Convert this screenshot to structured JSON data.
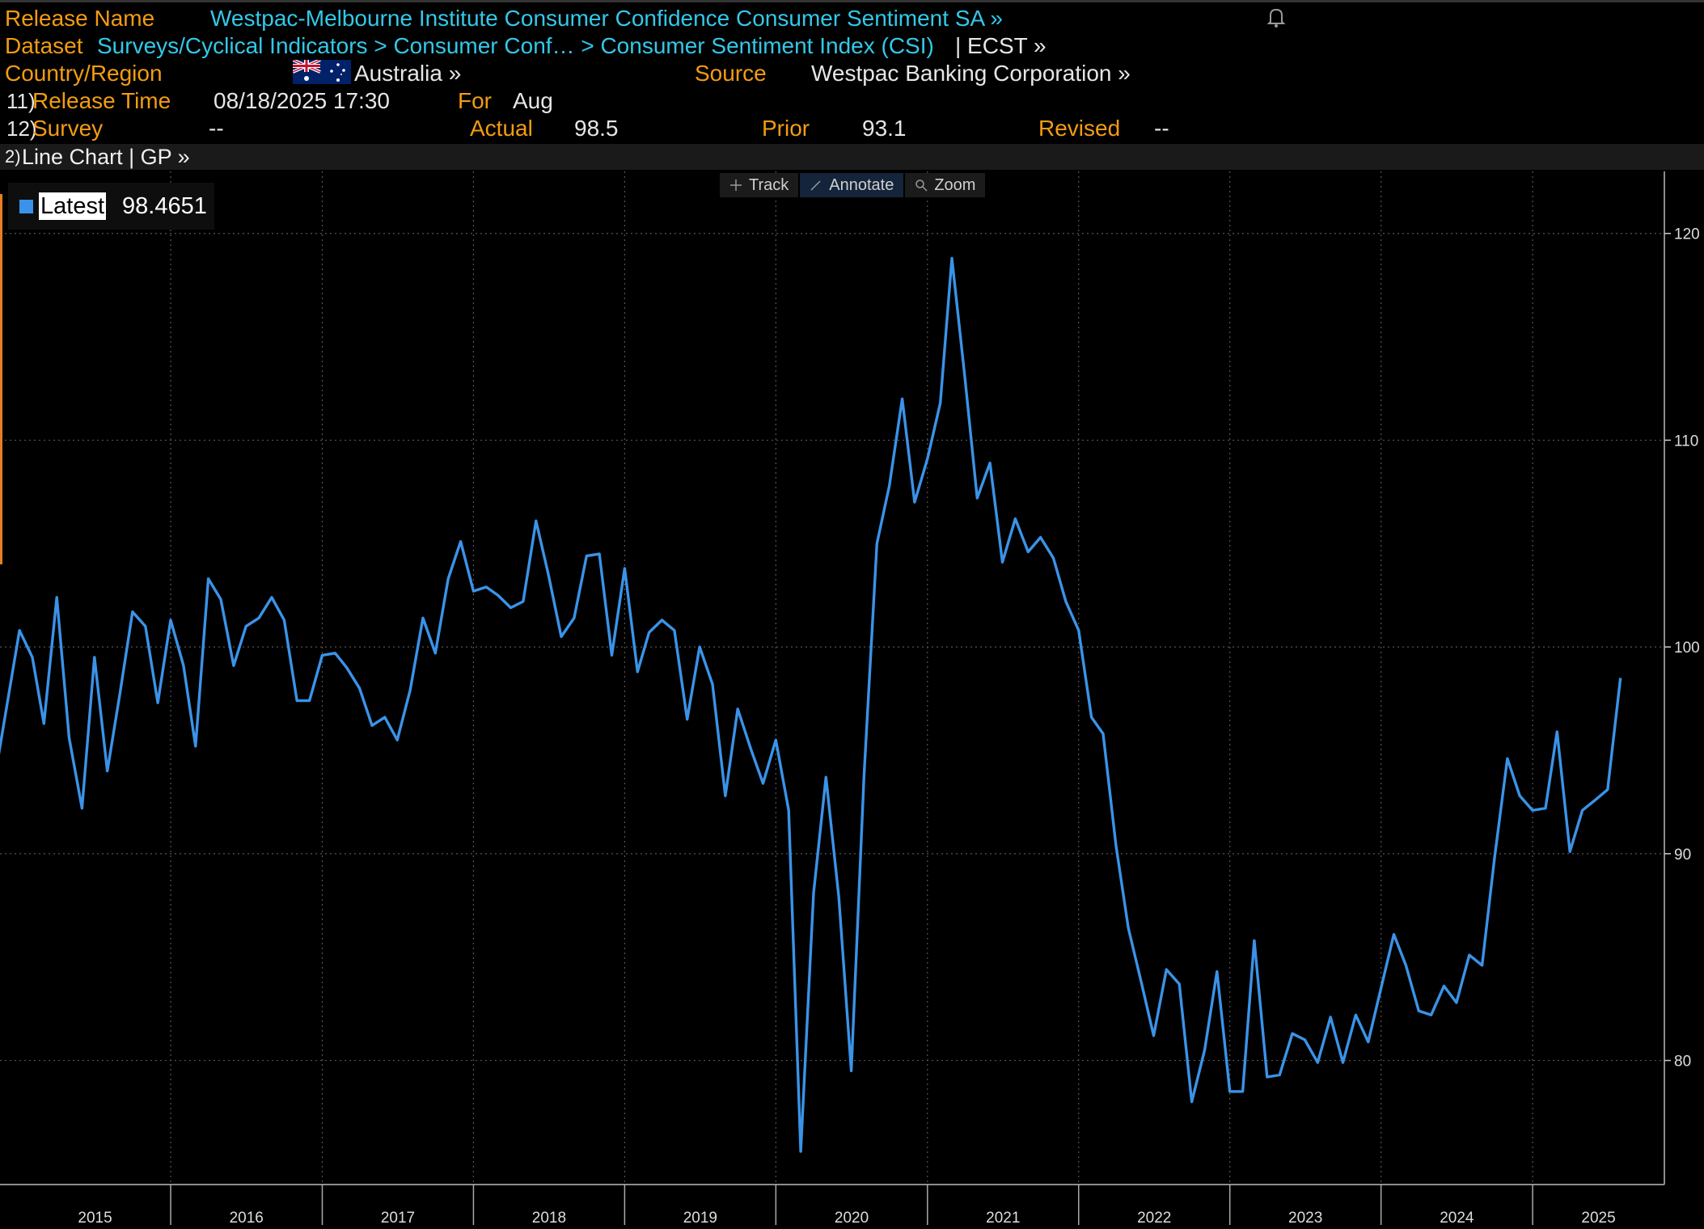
{
  "header": {
    "release_name_label": "Release Name",
    "release_name": "Westpac-Melbourne Institute Consumer Confidence Consumer Sentiment SA »",
    "dataset_label": "Dataset",
    "dataset_path": "Surveys/Cyclical Indicators > Consumer Conf… > Consumer Sentiment Index (CSI)",
    "dataset_suffix": "| ECST »",
    "country_label": "Country/Region",
    "country": "Australia »",
    "source_label": "Source",
    "source": "Westpac Banking Corporation »",
    "release_time_num": "11)",
    "release_time_label": "Release Time",
    "release_time": "08/18/2025 17:30",
    "for_label": "For",
    "for_value": "Aug",
    "survey_num": "12)",
    "survey_label": "Survey",
    "survey_value": "--",
    "actual_label": "Actual",
    "actual_value": "98.5",
    "prior_label": "Prior",
    "prior_value": "93.1",
    "revised_label": "Revised",
    "revised_value": "--"
  },
  "subbar": {
    "num": "2)",
    "text": "Line Chart | GP »"
  },
  "toolbar": {
    "track": "Track",
    "annotate": "Annotate",
    "zoom": "Zoom"
  },
  "legend": {
    "name": "Latest",
    "value": "98.4651"
  },
  "colors": {
    "line": "#3a93e8",
    "label": "#f39c12",
    "link": "#33c8e8",
    "background": "#000000"
  },
  "chart_data": {
    "type": "line",
    "ylim": [
      74,
      123
    ],
    "yticks": [
      80,
      90,
      100,
      110,
      120
    ],
    "xlim": [
      "2014-11-15",
      "2025-11-15"
    ],
    "xticks": [
      "2015",
      "2016",
      "2017",
      "2018",
      "2019",
      "2020",
      "2021",
      "2022",
      "2023",
      "2024",
      "2025"
    ],
    "legend_position": "top-left",
    "series": [
      {
        "name": "Latest",
        "x": [
          "2014-11",
          "2015-01",
          "2015-02",
          "2015-03",
          "2015-04",
          "2015-05",
          "2015-06",
          "2015-07",
          "2015-08",
          "2015-09",
          "2015-10",
          "2015-11",
          "2015-12",
          "2016-01",
          "2016-02",
          "2016-03",
          "2016-04",
          "2016-05",
          "2016-06",
          "2016-07",
          "2016-08",
          "2016-09",
          "2016-10",
          "2016-11",
          "2016-12",
          "2017-01",
          "2017-02",
          "2017-03",
          "2017-04",
          "2017-05",
          "2017-06",
          "2017-07",
          "2017-08",
          "2017-09",
          "2017-10",
          "2017-11",
          "2017-12",
          "2018-01",
          "2018-02",
          "2018-03",
          "2018-04",
          "2018-05",
          "2018-06",
          "2018-07",
          "2018-08",
          "2018-09",
          "2018-10",
          "2018-11",
          "2018-12",
          "2019-01",
          "2019-02",
          "2019-03",
          "2019-04",
          "2019-05",
          "2019-06",
          "2019-07",
          "2019-08",
          "2019-09",
          "2019-10",
          "2019-11",
          "2019-12",
          "2020-01",
          "2020-02",
          "2020-03",
          "2020-04",
          "2020-05",
          "2020-06",
          "2020-07",
          "2020-08",
          "2020-09",
          "2020-10",
          "2020-11",
          "2020-12",
          "2021-01",
          "2021-02",
          "2021-03",
          "2021-04",
          "2021-05",
          "2021-06",
          "2021-07",
          "2021-08",
          "2021-09",
          "2021-10",
          "2021-11",
          "2021-12",
          "2022-01",
          "2022-02",
          "2022-03",
          "2022-04",
          "2022-05",
          "2022-06",
          "2022-07",
          "2022-08",
          "2022-09",
          "2022-10",
          "2022-11",
          "2022-12",
          "2023-01",
          "2023-02",
          "2023-03",
          "2023-04",
          "2023-05",
          "2023-06",
          "2023-07",
          "2023-08",
          "2023-09",
          "2023-10",
          "2023-11",
          "2023-12",
          "2024-02",
          "2024-03",
          "2024-04",
          "2024-05",
          "2024-06",
          "2024-07",
          "2024-08",
          "2024-09",
          "2024-10",
          "2024-11",
          "2024-12",
          "2025-01",
          "2025-02",
          "2025-03",
          "2025-04",
          "2025-05",
          "2025-06",
          "2025-07",
          "2025-08"
        ],
        "values": [
          93.5,
          100.8,
          99.5,
          96.3,
          102.4,
          95.6,
          92.2,
          99.5,
          94.0,
          97.8,
          101.7,
          101.0,
          97.3,
          101.3,
          99.1,
          95.2,
          103.3,
          102.3,
          99.1,
          101.0,
          101.4,
          102.4,
          101.3,
          97.4,
          97.4,
          99.6,
          99.7,
          99.0,
          98.0,
          96.2,
          96.6,
          95.5,
          97.9,
          101.4,
          99.7,
          103.3,
          105.1,
          102.7,
          102.9,
          102.5,
          101.9,
          102.2,
          106.1,
          103.5,
          100.5,
          101.4,
          104.4,
          104.5,
          99.6,
          103.8,
          98.8,
          100.7,
          101.3,
          100.8,
          96.5,
          100.0,
          98.2,
          92.8,
          97.0,
          95.1,
          93.4,
          95.5,
          92.1,
          75.6,
          88.1,
          93.7,
          87.9,
          79.5,
          93.8,
          105.0,
          107.8,
          112.0,
          107.0,
          109.1,
          111.8,
          118.8,
          113.1,
          107.2,
          108.9,
          104.1,
          106.2,
          104.6,
          105.3,
          104.3,
          102.2,
          100.8,
          96.6,
          95.8,
          90.4,
          86.4,
          83.8,
          81.2,
          84.4,
          83.7,
          78.0,
          80.5,
          84.3,
          78.5,
          78.5,
          85.8,
          79.2,
          79.3,
          81.3,
          81.0,
          79.9,
          82.1,
          79.9,
          82.2,
          80.9,
          86.1,
          84.6,
          82.4,
          82.2,
          83.6,
          82.8,
          85.1,
          84.6,
          89.8,
          94.6,
          92.8,
          92.1,
          92.2,
          95.9,
          90.1,
          92.1,
          92.6,
          93.1,
          98.5
        ]
      }
    ]
  }
}
